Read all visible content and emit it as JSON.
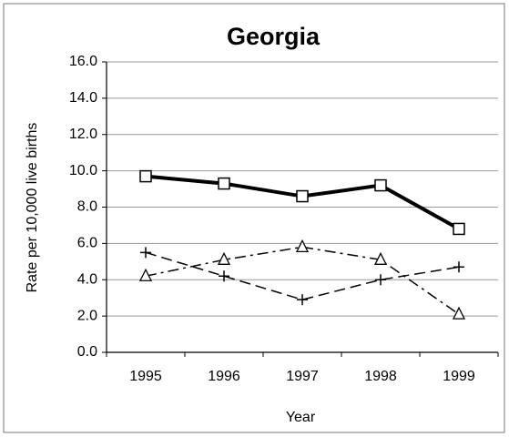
{
  "chart_data": {
    "type": "line",
    "title": "Georgia",
    "x_label": "Year",
    "y_label": "Rate per 10,000 live births",
    "categories": [
      "1995",
      "1996",
      "1997",
      "1998",
      "1999"
    ],
    "series": [
      {
        "color": "#000000",
        "marker": "square",
        "dash": "solid",
        "line_width": 4,
        "values": [
          9.7,
          9.3,
          8.6,
          9.2,
          6.8
        ]
      },
      {
        "color": "#000000",
        "marker": "triangle",
        "dash": "dashdot",
        "line_width": 1.5,
        "values": [
          4.2,
          5.1,
          5.8,
          5.1,
          2.1
        ]
      },
      {
        "color": "#000000",
        "marker": "plus",
        "dash": "dashed",
        "line_width": 1.5,
        "values": [
          5.5,
          4.2,
          2.9,
          4.0,
          4.7
        ]
      }
    ],
    "ylim": [
      0,
      16
    ],
    "yticks": [
      {
        "value": 0,
        "label": "0.0"
      },
      {
        "value": 2,
        "label": "2.0"
      },
      {
        "value": 4,
        "label": "4.0"
      },
      {
        "value": 6,
        "label": "6.0"
      },
      {
        "value": 8,
        "label": "8.0"
      },
      {
        "value": 10,
        "label": "10.0"
      },
      {
        "value": 12,
        "label": "12.0"
      },
      {
        "value": 14,
        "label": "14.0"
      },
      {
        "value": 16,
        "label": "16.0"
      }
    ],
    "grid": true
  }
}
